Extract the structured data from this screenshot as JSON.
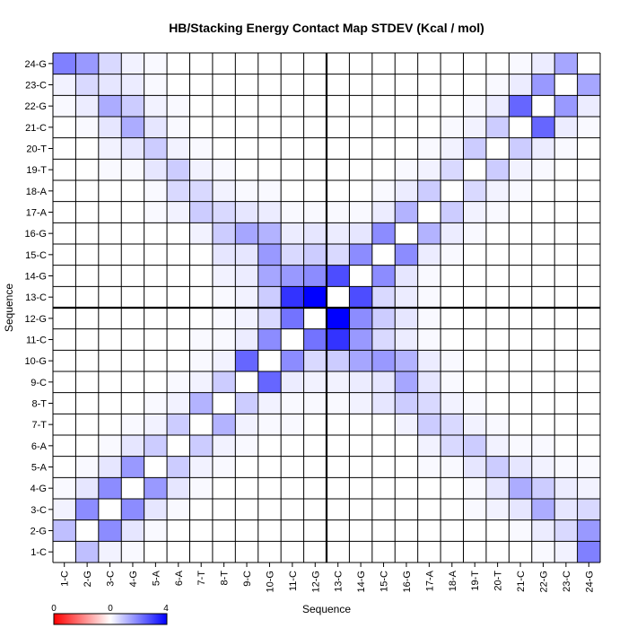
{
  "chart_data": {
    "type": "heatmap",
    "title": "HB/Stacking Energy Contact Map STDEV (Kcal / mol)",
    "xlabel": "Sequence",
    "ylabel": "Sequence",
    "x_categories": [
      "1-C",
      "2-G",
      "3-C",
      "4-G",
      "5-A",
      "6-A",
      "7-T",
      "8-T",
      "9-C",
      "10-G",
      "11-C",
      "12-G",
      "13-C",
      "14-G",
      "15-C",
      "16-G",
      "17-A",
      "18-A",
      "19-T",
      "20-T",
      "21-C",
      "22-G",
      "23-C",
      "24-G"
    ],
    "y_categories": [
      "1-C",
      "2-G",
      "3-C",
      "4-G",
      "5-A",
      "6-A",
      "7-T",
      "8-T",
      "9-C",
      "10-G",
      "11-C",
      "12-G",
      "13-C",
      "14-G",
      "15-C",
      "16-G",
      "17-A",
      "18-A",
      "19-T",
      "20-T",
      "21-C",
      "22-G",
      "23-C",
      "24-G"
    ],
    "color_scale": {
      "min": 0,
      "mid": 0,
      "max": 4,
      "min_color": "#ff0000",
      "mid_color": "#ffffff",
      "max_color": "#0000ff",
      "tick_labels": [
        "0",
        "0",
        "4"
      ]
    },
    "divider_after_index": 11,
    "values": [
      [
        0.0,
        1.0,
        0.2,
        0.1,
        0.0,
        0.0,
        0.0,
        0.0,
        0.0,
        0.0,
        0.0,
        0.0,
        0.0,
        0.0,
        0.0,
        0.0,
        0.0,
        0.0,
        0.0,
        0.0,
        0.0,
        0.1,
        0.2,
        2.0
      ],
      [
        1.0,
        0.0,
        1.8,
        0.4,
        0.1,
        0.0,
        0.0,
        0.0,
        0.0,
        0.0,
        0.0,
        0.0,
        0.0,
        0.0,
        0.0,
        0.0,
        0.0,
        0.0,
        0.0,
        0.0,
        0.1,
        0.3,
        0.6,
        1.6
      ],
      [
        0.2,
        1.8,
        0.0,
        1.8,
        0.4,
        0.1,
        0.0,
        0.0,
        0.0,
        0.0,
        0.0,
        0.0,
        0.0,
        0.0,
        0.0,
        0.0,
        0.0,
        0.0,
        0.1,
        0.2,
        0.4,
        1.3,
        0.4,
        0.6
      ],
      [
        0.1,
        0.4,
        1.8,
        0.0,
        1.6,
        0.4,
        0.1,
        0.0,
        0.0,
        0.0,
        0.0,
        0.0,
        0.0,
        0.0,
        0.0,
        0.0,
        0.0,
        0.0,
        0.1,
        0.4,
        1.3,
        0.8,
        0.3,
        0.2
      ],
      [
        0.0,
        0.1,
        0.4,
        1.6,
        0.0,
        0.8,
        0.2,
        0.1,
        0.0,
        0.0,
        0.0,
        0.0,
        0.0,
        0.0,
        0.0,
        0.0,
        0.1,
        0.1,
        0.4,
        0.8,
        0.4,
        0.2,
        0.1,
        0.1
      ],
      [
        0.0,
        0.0,
        0.1,
        0.4,
        0.8,
        0.0,
        0.8,
        0.2,
        0.1,
        0.0,
        0.0,
        0.0,
        0.0,
        0.0,
        0.0,
        0.0,
        0.2,
        0.6,
        0.8,
        0.2,
        0.1,
        0.1,
        0.0,
        0.0
      ],
      [
        0.0,
        0.0,
        0.0,
        0.1,
        0.2,
        0.8,
        0.0,
        1.2,
        0.2,
        0.1,
        0.1,
        0.0,
        0.0,
        0.0,
        0.0,
        0.2,
        0.8,
        0.6,
        0.2,
        0.1,
        0.0,
        0.0,
        0.0,
        0.0
      ],
      [
        0.0,
        0.0,
        0.0,
        0.0,
        0.1,
        0.2,
        1.2,
        0.0,
        0.8,
        0.2,
        0.1,
        0.1,
        0.1,
        0.2,
        0.4,
        0.8,
        0.6,
        0.2,
        0.1,
        0.0,
        0.0,
        0.0,
        0.0,
        0.0
      ],
      [
        0.0,
        0.0,
        0.0,
        0.0,
        0.0,
        0.1,
        0.2,
        0.8,
        0.0,
        2.4,
        0.3,
        0.2,
        0.2,
        0.3,
        0.4,
        1.4,
        0.4,
        0.1,
        0.0,
        0.0,
        0.0,
        0.0,
        0.0,
        0.0
      ],
      [
        0.0,
        0.0,
        0.0,
        0.0,
        0.0,
        0.0,
        0.1,
        0.2,
        2.4,
        0.0,
        1.8,
        0.6,
        0.8,
        1.4,
        1.6,
        1.2,
        0.3,
        0.1,
        0.0,
        0.0,
        0.0,
        0.0,
        0.0,
        0.0
      ],
      [
        0.0,
        0.0,
        0.0,
        0.0,
        0.0,
        0.0,
        0.1,
        0.1,
        0.3,
        1.8,
        0.0,
        2.2,
        3.2,
        1.6,
        0.6,
        0.3,
        0.1,
        0.0,
        0.0,
        0.0,
        0.0,
        0.0,
        0.0,
        0.0
      ],
      [
        0.0,
        0.0,
        0.0,
        0.0,
        0.0,
        0.0,
        0.0,
        0.1,
        0.2,
        0.6,
        2.2,
        0.0,
        4.0,
        1.8,
        0.8,
        0.4,
        0.1,
        0.0,
        0.0,
        0.0,
        0.0,
        0.0,
        0.0,
        0.0
      ],
      [
        0.0,
        0.0,
        0.0,
        0.0,
        0.0,
        0.0,
        0.0,
        0.1,
        0.2,
        0.8,
        3.2,
        4.0,
        0.0,
        2.8,
        0.6,
        0.3,
        0.1,
        0.0,
        0.0,
        0.0,
        0.0,
        0.0,
        0.0,
        0.0
      ],
      [
        0.0,
        0.0,
        0.0,
        0.0,
        0.0,
        0.0,
        0.0,
        0.2,
        0.3,
        1.4,
        1.6,
        1.8,
        2.8,
        0.0,
        1.8,
        0.4,
        0.1,
        0.0,
        0.0,
        0.0,
        0.0,
        0.0,
        0.0,
        0.0
      ],
      [
        0.0,
        0.0,
        0.0,
        0.0,
        0.0,
        0.0,
        0.0,
        0.4,
        0.4,
        1.6,
        0.6,
        0.8,
        0.6,
        1.8,
        0.0,
        1.8,
        0.3,
        0.1,
        0.0,
        0.0,
        0.0,
        0.0,
        0.0,
        0.0
      ],
      [
        0.0,
        0.0,
        0.0,
        0.0,
        0.0,
        0.0,
        0.2,
        0.8,
        1.4,
        1.2,
        0.3,
        0.4,
        0.3,
        0.4,
        1.8,
        0.0,
        1.2,
        0.3,
        0.1,
        0.0,
        0.0,
        0.0,
        0.0,
        0.0
      ],
      [
        0.0,
        0.0,
        0.0,
        0.0,
        0.1,
        0.2,
        0.8,
        0.6,
        0.4,
        0.3,
        0.1,
        0.1,
        0.1,
        0.1,
        0.3,
        1.2,
        0.0,
        0.8,
        0.2,
        0.1,
        0.0,
        0.0,
        0.0,
        0.0
      ],
      [
        0.0,
        0.0,
        0.0,
        0.0,
        0.1,
        0.6,
        0.6,
        0.2,
        0.1,
        0.1,
        0.0,
        0.0,
        0.0,
        0.0,
        0.1,
        0.3,
        0.8,
        0.0,
        0.6,
        0.2,
        0.1,
        0.0,
        0.0,
        0.0
      ],
      [
        0.0,
        0.0,
        0.1,
        0.1,
        0.4,
        0.8,
        0.2,
        0.1,
        0.0,
        0.0,
        0.0,
        0.0,
        0.0,
        0.0,
        0.0,
        0.1,
        0.2,
        0.6,
        0.0,
        0.8,
        0.2,
        0.1,
        0.0,
        0.0
      ],
      [
        0.0,
        0.0,
        0.2,
        0.4,
        0.8,
        0.2,
        0.1,
        0.0,
        0.0,
        0.0,
        0.0,
        0.0,
        0.0,
        0.0,
        0.0,
        0.0,
        0.1,
        0.2,
        0.8,
        0.0,
        0.8,
        0.3,
        0.1,
        0.0
      ],
      [
        0.0,
        0.1,
        0.4,
        1.3,
        0.4,
        0.1,
        0.0,
        0.0,
        0.0,
        0.0,
        0.0,
        0.0,
        0.0,
        0.0,
        0.0,
        0.0,
        0.0,
        0.1,
        0.2,
        0.8,
        0.0,
        2.4,
        0.3,
        0.1
      ],
      [
        0.1,
        0.3,
        1.3,
        0.8,
        0.2,
        0.1,
        0.0,
        0.0,
        0.0,
        0.0,
        0.0,
        0.0,
        0.0,
        0.0,
        0.0,
        0.0,
        0.0,
        0.0,
        0.1,
        0.3,
        2.4,
        0.0,
        1.6,
        0.3
      ],
      [
        0.2,
        0.6,
        0.4,
        0.3,
        0.1,
        0.0,
        0.0,
        0.0,
        0.0,
        0.0,
        0.0,
        0.0,
        0.0,
        0.0,
        0.0,
        0.0,
        0.0,
        0.0,
        0.0,
        0.1,
        0.3,
        1.6,
        0.0,
        1.4
      ],
      [
        2.0,
        1.6,
        0.6,
        0.2,
        0.1,
        0.0,
        0.0,
        0.0,
        0.0,
        0.0,
        0.0,
        0.0,
        0.0,
        0.0,
        0.0,
        0.0,
        0.0,
        0.0,
        0.0,
        0.0,
        0.1,
        0.3,
        1.4,
        0.0
      ]
    ]
  }
}
